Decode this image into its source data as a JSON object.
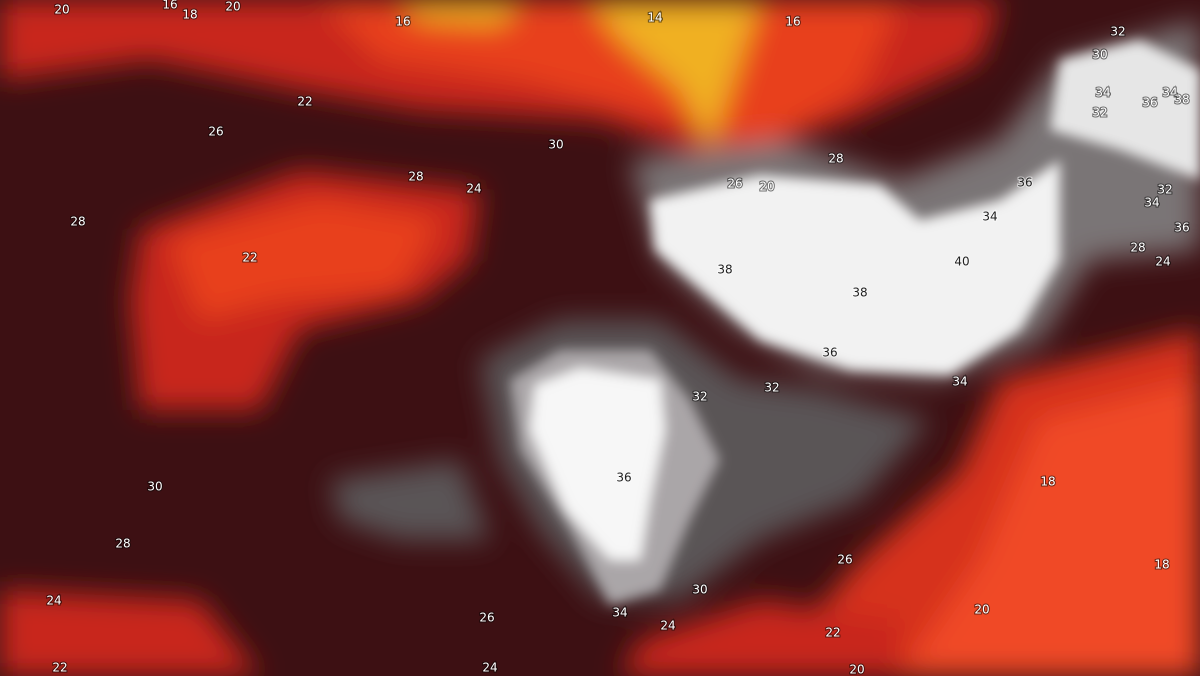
{
  "map": {
    "contour_labels": [
      "20",
      "16",
      "18",
      "20",
      "16",
      "14",
      "16",
      "32",
      "30",
      "34",
      "36",
      "34",
      "38",
      "32",
      "22",
      "26",
      "30",
      "28",
      "24",
      "28",
      "26",
      "20",
      "36",
      "32",
      "34",
      "34",
      "36",
      "28",
      "22",
      "28",
      "24",
      "38",
      "40",
      "38",
      "36",
      "34",
      "32",
      "32",
      "36",
      "18",
      "30",
      "28",
      "26",
      "18",
      "30",
      "24",
      "34",
      "26",
      "20",
      "24",
      "22",
      "22",
      "24",
      "20"
    ]
  }
}
